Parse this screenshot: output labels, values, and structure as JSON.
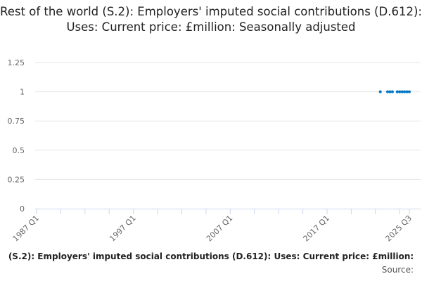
{
  "chart_data": {
    "type": "scatter",
    "title": "Rest of the world (S.2): Employers' imputed social contributions (D.612): Uses: Current price: £million: Seasonally adjusted",
    "xlabel": "",
    "ylabel": "",
    "x_tick_labels": [
      "1987 Q1",
      "1997 Q1",
      "2007 Q1",
      "2017 Q1",
      "2025 Q3"
    ],
    "x_range": [
      "1987 Q1",
      "2025 Q3"
    ],
    "y_ticks": [
      "0",
      "0.25",
      "0.5",
      "0.75",
      "1",
      "1.25"
    ],
    "ylim": [
      0,
      1.25
    ],
    "grid": "horizontal",
    "series_color": "#0075c1",
    "points": [
      {
        "x": "2022 Q3",
        "y": 1
      },
      {
        "x": "2023 Q2",
        "y": 1
      },
      {
        "x": "2023 Q3",
        "y": 1
      },
      {
        "x": "2023 Q4",
        "y": 1
      },
      {
        "x": "2024 Q2",
        "y": 1
      },
      {
        "x": "2024 Q3",
        "y": 1
      },
      {
        "x": "2024 Q4",
        "y": 1
      },
      {
        "x": "2025 Q1",
        "y": 1
      },
      {
        "x": "2025 Q2",
        "y": 1
      },
      {
        "x": "2025 Q3",
        "y": 1
      }
    ]
  },
  "footer": {
    "series_text": "(S.2): Employers' imputed social contributions (D.612): Uses: Current price: £million:",
    "source_label": "Source:"
  }
}
